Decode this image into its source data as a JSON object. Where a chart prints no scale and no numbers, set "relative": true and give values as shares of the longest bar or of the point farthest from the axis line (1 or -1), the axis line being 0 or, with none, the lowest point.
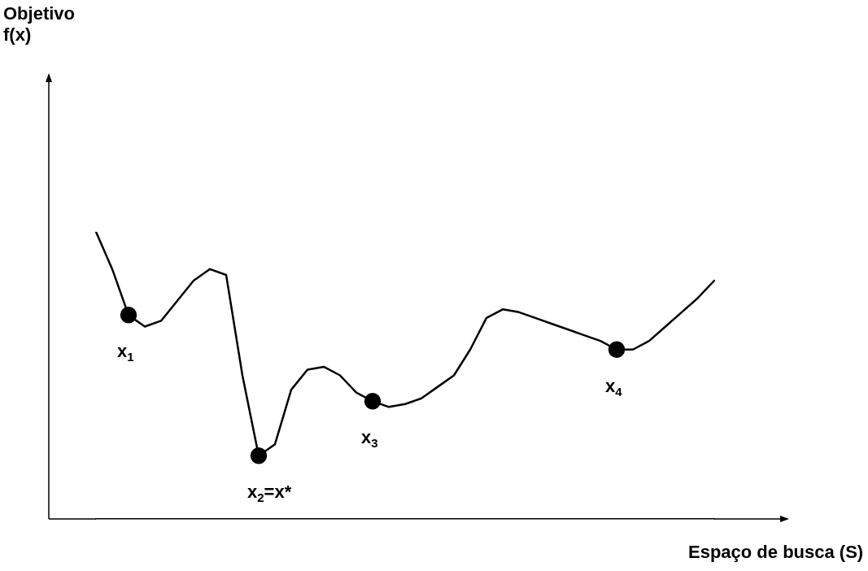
{
  "chart_data": {
    "type": "line",
    "relative": true,
    "xlabel": "Espaço de busca (S)",
    "tick_labels": false,
    "categories": [
      null,
      null,
      null,
      null,
      null,
      null,
      null,
      null,
      null,
      null,
      null,
      null,
      null,
      null,
      null,
      null,
      null,
      null,
      null,
      null,
      null,
      null,
      null,
      null,
      null,
      null,
      null,
      null,
      null,
      null,
      null,
      null,
      null,
      null,
      null,
      null,
      null,
      null,
      null
    ],
    "series": [
      {
        "type": "line",
        "color": "#000000",
        "line_style": "solid",
        "marker": [
          "none",
          "none",
          "circle",
          "none",
          "none",
          "none",
          "none",
          "none",
          "none",
          "none",
          "circle",
          "none",
          "none",
          "none",
          "none",
          "none",
          "none",
          "circle",
          "none",
          "none",
          "none",
          "none",
          "none",
          "none",
          "none",
          "none",
          "none",
          "none",
          "none",
          "none",
          "none",
          "none",
          "circle",
          "none",
          "none",
          "none",
          "none",
          "none",
          "none"
        ],
        "values": [
          1.0,
          0.87,
          0.71,
          0.67,
          0.69,
          0.76,
          0.83,
          0.87,
          0.85,
          0.5,
          0.22,
          0.26,
          0.45,
          0.52,
          0.53,
          0.5,
          0.44,
          0.41,
          0.39,
          0.4,
          0.42,
          0.46,
          0.5,
          0.59,
          0.7,
          0.73,
          0.72,
          0.7,
          0.68,
          0.66,
          0.64,
          0.62,
          0.59,
          0.59,
          0.62,
          0.67,
          0.72,
          0.77,
          0.83
        ]
      }
    ],
    "annotations": [
      "x$_{1}$",
      "x$_{2}$=x*",
      "x$_{3}$",
      "x$_{4}$",
      "Objetivo\nf(x)"
    ]
  }
}
